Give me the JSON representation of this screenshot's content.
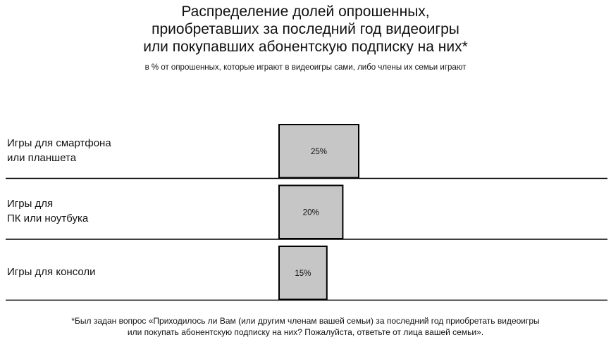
{
  "title_lines": [
    "Распределение долей опрошенных,",
    "приобретавших за последний год видеоигры",
    "или покупавших абонентскую подписку на них*"
  ],
  "subtitle": "в % от опрошенных, которые играют в видеоигры сами, либо члены их семьи играют",
  "chart_data": {
    "type": "bar",
    "orientation": "horizontal",
    "title": "Распределение долей опрошенных, приобретавших за последний год видеоигры или покупавших абонентскую подписку на них*",
    "subtitle": "в % от опрошенных, которые играют в видеоигры сами, либо члены их семьи играют",
    "categories": [
      [
        "Игры для смартфона",
        "или планшета"
      ],
      [
        "Игры для",
        "ПК или ноутбука"
      ],
      [
        "Игры для консоли"
      ]
    ],
    "values": [
      25,
      20,
      15
    ],
    "data_labels": [
      "25%",
      "20%",
      "15%"
    ],
    "unit": "%",
    "xlim": [
      0,
      100
    ],
    "bar_color": "#c6c6c6",
    "bar_stroke": "#000000",
    "grid": false,
    "legend": "none"
  },
  "footnote_lines": [
    "*Был задан вопрос «Приходилось ли Вам (или другим членам вашей семьи) за последний год приобретать видеоигры",
    "или покупать абонентскую подписку на них? Пожалуйста, ответьте от лица вашей семьи»."
  ]
}
